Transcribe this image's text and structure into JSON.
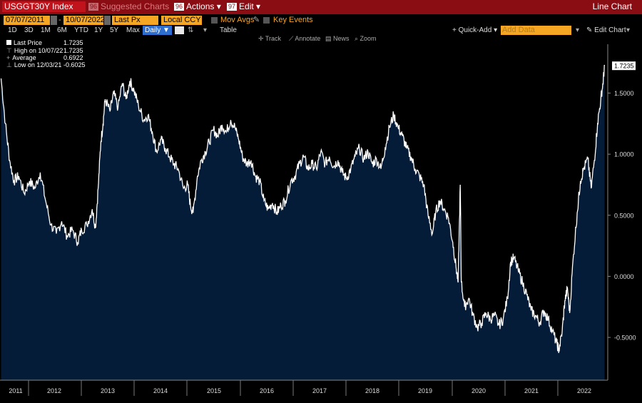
{
  "header": {
    "ticker": "USGGT30Y Index",
    "suggested_num": "96",
    "suggested_label": "Suggested Charts",
    "actions_num": "96",
    "actions_label": "Actions ▾",
    "edit_num": "97",
    "edit_label": "Edit ▾",
    "chart_title": "Line Chart"
  },
  "controls": {
    "start_date": "07/07/2011",
    "end_date": "10/07/2022",
    "separator": "-",
    "field": "Last Px",
    "currency": "Local CCY",
    "mov_avgs": "Mov Avgs",
    "key_events": "Key Events"
  },
  "periods": [
    "1D",
    "3D",
    "1M",
    "6M",
    "YTD",
    "1Y",
    "5Y",
    "Max"
  ],
  "frequency": "Daily ▼",
  "toolbar": {
    "table": "Table",
    "quick_add": "+ Quick-Add ▾",
    "add_data_placeholder": "Add Data",
    "edit_chart": "✎ Edit Chart",
    "track": "Track",
    "annotate": "Annotate",
    "news": "News",
    "zoom": "Zoom"
  },
  "legend": [
    {
      "label": "Last Price",
      "value": "1.7235"
    },
    {
      "label": "High on 10/07/22",
      "value": "1.7235"
    },
    {
      "label": "Average",
      "value": "0.6922"
    },
    {
      "label": "Low on 12/03/21",
      "value": "-0.6025"
    }
  ],
  "colors": {
    "background": "#000000",
    "area_fill": "#051c38",
    "line": "#ffffff",
    "header_bar": "#8b0d14",
    "input_fields": "#f5a623"
  },
  "chart_data": {
    "type": "area",
    "title": "",
    "xlabel": "",
    "ylabel": "",
    "ylim": [
      -0.85,
      1.9
    ],
    "y_ticks": [
      "1.5000",
      "1.0000",
      "0.5000",
      "0.0000",
      "-0.5000"
    ],
    "x_tick_labels": [
      "2011",
      "2012",
      "2013",
      "2014",
      "2015",
      "2016",
      "2017",
      "2018",
      "2019",
      "2020",
      "2021",
      "2022"
    ],
    "last_value_label": "1.7235",
    "grid": false,
    "series": [
      {
        "values": [
          [
            2011.52,
            1.62
          ],
          [
            2011.6,
            1.25
          ],
          [
            2011.68,
            0.95
          ],
          [
            2011.76,
            0.78
          ],
          [
            2011.85,
            0.82
          ],
          [
            2011.95,
            0.68
          ],
          [
            2012.05,
            0.78
          ],
          [
            2012.15,
            0.72
          ],
          [
            2012.25,
            0.85
          ],
          [
            2012.35,
            0.62
          ],
          [
            2012.45,
            0.42
          ],
          [
            2012.55,
            0.35
          ],
          [
            2012.65,
            0.45
          ],
          [
            2012.75,
            0.33
          ],
          [
            2012.85,
            0.38
          ],
          [
            2012.95,
            0.28
          ],
          [
            2013.02,
            0.38
          ],
          [
            2013.12,
            0.42
          ],
          [
            2013.22,
            0.55
          ],
          [
            2013.28,
            0.4
          ],
          [
            2013.33,
            0.72
          ],
          [
            2013.38,
            1.1
          ],
          [
            2013.42,
            1.25
          ],
          [
            2013.46,
            1.45
          ],
          [
            2013.55,
            1.35
          ],
          [
            2013.62,
            1.5
          ],
          [
            2013.7,
            1.38
          ],
          [
            2013.78,
            1.58
          ],
          [
            2013.85,
            1.45
          ],
          [
            2013.92,
            1.6
          ],
          [
            2014.0,
            1.52
          ],
          [
            2014.08,
            1.4
          ],
          [
            2014.18,
            1.28
          ],
          [
            2014.26,
            1.32
          ],
          [
            2014.34,
            1.18
          ],
          [
            2014.42,
            1.02
          ],
          [
            2014.5,
            1.12
          ],
          [
            2014.58,
            1.05
          ],
          [
            2014.66,
            0.98
          ],
          [
            2014.74,
            0.92
          ],
          [
            2014.82,
            0.88
          ],
          [
            2014.92,
            0.72
          ],
          [
            2015.0,
            0.75
          ],
          [
            2015.05,
            0.58
          ],
          [
            2015.1,
            0.52
          ],
          [
            2015.18,
            0.82
          ],
          [
            2015.25,
            0.95
          ],
          [
            2015.33,
            1.02
          ],
          [
            2015.4,
            1.1
          ],
          [
            2015.48,
            1.2
          ],
          [
            2015.56,
            1.15
          ],
          [
            2015.64,
            1.24
          ],
          [
            2015.72,
            1.18
          ],
          [
            2015.8,
            1.28
          ],
          [
            2015.88,
            1.22
          ],
          [
            2015.95,
            1.12
          ],
          [
            2016.02,
            0.98
          ],
          [
            2016.1,
            0.92
          ],
          [
            2016.18,
            0.95
          ],
          [
            2016.26,
            0.82
          ],
          [
            2016.34,
            0.78
          ],
          [
            2016.42,
            0.62
          ],
          [
            2016.5,
            0.55
          ],
          [
            2016.58,
            0.6
          ],
          [
            2016.66,
            0.52
          ],
          [
            2016.74,
            0.58
          ],
          [
            2016.82,
            0.62
          ],
          [
            2016.92,
            0.78
          ],
          [
            2017.0,
            0.82
          ],
          [
            2017.08,
            0.92
          ],
          [
            2017.16,
            0.98
          ],
          [
            2017.24,
            0.88
          ],
          [
            2017.32,
            0.92
          ],
          [
            2017.4,
            0.88
          ],
          [
            2017.48,
            1.02
          ],
          [
            2017.56,
            0.92
          ],
          [
            2017.64,
            0.98
          ],
          [
            2017.72,
            0.9
          ],
          [
            2017.8,
            0.95
          ],
          [
            2017.88,
            0.85
          ],
          [
            2017.96,
            0.8
          ],
          [
            2018.04,
            0.88
          ],
          [
            2018.12,
            0.98
          ],
          [
            2018.2,
            1.05
          ],
          [
            2018.28,
            0.96
          ],
          [
            2018.36,
            1.02
          ],
          [
            2018.44,
            0.92
          ],
          [
            2018.52,
            0.96
          ],
          [
            2018.6,
            0.88
          ],
          [
            2018.68,
            1.05
          ],
          [
            2018.76,
            1.22
          ],
          [
            2018.84,
            1.32
          ],
          [
            2018.92,
            1.22
          ],
          [
            2019.0,
            1.15
          ],
          [
            2019.08,
            1.05
          ],
          [
            2019.16,
            0.98
          ],
          [
            2019.24,
            0.88
          ],
          [
            2019.32,
            0.82
          ],
          [
            2019.4,
            0.75
          ],
          [
            2019.48,
            0.5
          ],
          [
            2019.56,
            0.35
          ],
          [
            2019.62,
            0.52
          ],
          [
            2019.7,
            0.62
          ],
          [
            2019.78,
            0.55
          ],
          [
            2019.86,
            0.48
          ],
          [
            2019.94,
            0.28
          ],
          [
            2020.0,
            0.08
          ],
          [
            2020.04,
            -0.05
          ],
          [
            2020.08,
            0.75
          ],
          [
            2020.1,
            -0.05
          ],
          [
            2020.16,
            -0.25
          ],
          [
            2020.24,
            -0.18
          ],
          [
            2020.32,
            -0.32
          ],
          [
            2020.4,
            -0.42
          ],
          [
            2020.48,
            -0.38
          ],
          [
            2020.56,
            -0.3
          ],
          [
            2020.64,
            -0.35
          ],
          [
            2020.72,
            -0.32
          ],
          [
            2020.8,
            -0.4
          ],
          [
            2020.88,
            -0.35
          ],
          [
            2020.96,
            -0.18
          ],
          [
            2021.02,
            0.12
          ],
          [
            2021.08,
            0.15
          ],
          [
            2021.16,
            0.05
          ],
          [
            2021.24,
            -0.05
          ],
          [
            2021.32,
            -0.15
          ],
          [
            2021.4,
            -0.28
          ],
          [
            2021.48,
            -0.32
          ],
          [
            2021.56,
            -0.38
          ],
          [
            2021.64,
            -0.28
          ],
          [
            2021.72,
            -0.35
          ],
          [
            2021.8,
            -0.45
          ],
          [
            2021.88,
            -0.55
          ],
          [
            2021.92,
            -0.6025
          ],
          [
            2021.98,
            -0.45
          ],
          [
            2022.03,
            -0.2
          ],
          [
            2022.08,
            -0.1
          ],
          [
            2022.12,
            -0.3
          ],
          [
            2022.18,
            0.12
          ],
          [
            2022.26,
            0.52
          ],
          [
            2022.32,
            0.78
          ],
          [
            2022.38,
            0.88
          ],
          [
            2022.46,
            0.96
          ],
          [
            2022.52,
            0.72
          ],
          [
            2022.58,
            0.95
          ],
          [
            2022.64,
            1.25
          ],
          [
            2022.7,
            1.45
          ],
          [
            2022.74,
            1.58
          ],
          [
            2022.77,
            1.7235
          ]
        ]
      }
    ]
  }
}
